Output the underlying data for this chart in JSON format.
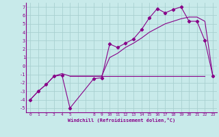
{
  "xlabel": "Windchill (Refroidissement éolien,°C)",
  "background_color": "#c8eaea",
  "grid_color": "#a8d0d0",
  "line_color": "#880088",
  "xlim": [
    -0.5,
    23.5
  ],
  "ylim": [
    -5.5,
    7.5
  ],
  "xticks": [
    0,
    1,
    2,
    3,
    4,
    5,
    8,
    9,
    10,
    11,
    12,
    13,
    14,
    15,
    16,
    17,
    18,
    19,
    20,
    21,
    22,
    23
  ],
  "yticks": [
    -5,
    -4,
    -3,
    -2,
    -1,
    0,
    1,
    2,
    3,
    4,
    5,
    6,
    7
  ],
  "series1_x": [
    0,
    1,
    2,
    3,
    4,
    5,
    8,
    9,
    10,
    11,
    12,
    13,
    14,
    15,
    16,
    17,
    18,
    19,
    20,
    21,
    22,
    23
  ],
  "series1_y": [
    -4.0,
    -3.0,
    -2.2,
    -1.2,
    -1.1,
    -5.0,
    -1.5,
    -1.4,
    2.6,
    2.2,
    2.7,
    3.2,
    4.3,
    5.7,
    6.8,
    6.3,
    6.7,
    7.0,
    5.3,
    5.3,
    3.0,
    -1.2
  ],
  "series2_x": [
    0,
    1,
    2,
    3,
    4,
    5,
    8,
    9,
    10,
    11,
    12,
    13,
    14,
    15,
    16,
    17,
    18,
    19,
    20,
    21,
    22,
    23
  ],
  "series2_y": [
    -4.0,
    -3.0,
    -2.2,
    -1.2,
    -0.9,
    -1.2,
    -1.2,
    -1.2,
    1.0,
    1.5,
    2.2,
    2.7,
    3.3,
    4.0,
    4.5,
    5.0,
    5.3,
    5.6,
    5.8,
    5.8,
    5.3,
    -1.2
  ],
  "series3_x": [
    5,
    22
  ],
  "series3_y": [
    -1.2,
    -1.2
  ]
}
